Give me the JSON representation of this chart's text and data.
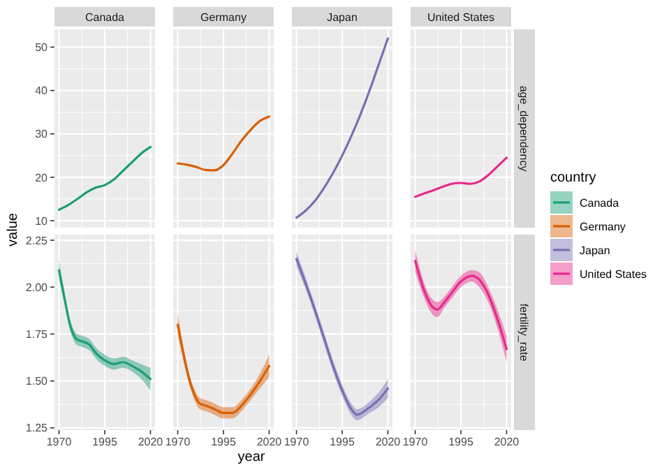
{
  "chart_data": [
    {
      "type": "line",
      "title": "Canada",
      "ylabel": "value",
      "xlim": [
        1967.5,
        2022.5
      ],
      "ylim": [
        8.4,
        54.1
      ],
      "xticks": [
        1970,
        1995,
        2020
      ],
      "yticks": [
        10,
        20,
        30,
        40,
        50
      ],
      "tick_labels": "y",
      "grid": true,
      "series": [
        {
          "name": "Canada",
          "color": "#1b9e77",
          "x": [
            1970,
            1975,
            1980,
            1985,
            1990,
            1995,
            2000,
            2005,
            2010,
            2015,
            2020
          ],
          "values": [
            12.5,
            13.6,
            15,
            16.5,
            17.6,
            18.2,
            19.5,
            21.5,
            23.5,
            25.5,
            27
          ]
        }
      ]
    },
    {
      "type": "line",
      "title": "Germany",
      "xlim": [
        1967.5,
        2022.5
      ],
      "ylim": [
        8.4,
        54.1
      ],
      "xticks": [
        1970,
        1995,
        2020
      ],
      "yticks": [
        10,
        20,
        30,
        40,
        50
      ],
      "tick_labels": false,
      "grid": true,
      "series": [
        {
          "name": "Germany",
          "color": "#d95f02",
          "x": [
            1970,
            1975,
            1980,
            1985,
            1990,
            1995,
            2000,
            2005,
            2010,
            2015,
            2020
          ],
          "values": [
            23.2,
            22.9,
            22.4,
            21.7,
            21.6,
            22.8,
            25.5,
            28.5,
            31,
            33,
            34
          ]
        }
      ]
    },
    {
      "type": "line",
      "title": "Japan",
      "xlim": [
        1967.5,
        2022.5
      ],
      "ylim": [
        8.4,
        54.1
      ],
      "xticks": [
        1970,
        1995,
        2020
      ],
      "yticks": [
        10,
        20,
        30,
        40,
        50
      ],
      "tick_labels": false,
      "grid": true,
      "series": [
        {
          "name": "Japan",
          "color": "#7570b3",
          "x": [
            1970,
            1975,
            1980,
            1985,
            1990,
            1995,
            2000,
            2005,
            2010,
            2015,
            2020
          ],
          "values": [
            10.7,
            12.3,
            14.5,
            17.5,
            21,
            25,
            29.5,
            34.5,
            40,
            46,
            52
          ]
        }
      ]
    },
    {
      "type": "line",
      "title": "United States",
      "y2label": "age_dependency",
      "legend_title": "country",
      "legend": "right",
      "xlim": [
        1967.5,
        2022.5
      ],
      "ylim": [
        8.4,
        54.1
      ],
      "xticks": [
        1970,
        1995,
        2020
      ],
      "yticks": [
        10,
        20,
        30,
        40,
        50
      ],
      "tick_labels": false,
      "grid": true,
      "series": [
        {
          "name": "United States",
          "color": "#e7298a",
          "x": [
            1970,
            1975,
            1980,
            1985,
            1990,
            1995,
            2000,
            2005,
            2010,
            2015,
            2020
          ],
          "values": [
            15.5,
            16.3,
            17,
            17.8,
            18.5,
            18.7,
            18.5,
            19,
            20.5,
            22.5,
            24.5
          ]
        }
      ]
    },
    {
      "type": "line",
      "xlim": [
        1967.5,
        2022.5
      ],
      "ylim": [
        1.238,
        2.28
      ],
      "xticks": [
        1970,
        1995,
        2020
      ],
      "yticks": [
        1.25,
        {
          "value": 1.5,
          "label": "1.50"
        },
        1.75,
        {
          "value": 2,
          "label": "2.00"
        },
        2.25
      ],
      "grid": true,
      "series": [
        {
          "name": "Canada",
          "color": "#1b9e77",
          "x": [
            1970,
            1973,
            1976,
            1980,
            1983,
            1987,
            1990,
            1995,
            2000,
            2005,
            2010,
            2015,
            2020
          ],
          "values": [
            2.09,
            1.94,
            1.8,
            1.72,
            1.71,
            1.69,
            1.65,
            1.61,
            1.59,
            1.6,
            1.58,
            1.55,
            1.51
          ],
          "lower": [
            2.04,
            1.91,
            1.77,
            1.69,
            1.68,
            1.66,
            1.62,
            1.58,
            1.56,
            1.57,
            1.55,
            1.51,
            1.45
          ],
          "upper": [
            2.14,
            1.97,
            1.83,
            1.75,
            1.74,
            1.72,
            1.68,
            1.64,
            1.62,
            1.63,
            1.61,
            1.59,
            1.57
          ]
        }
      ]
    },
    {
      "type": "line",
      "xlabel": "year",
      "xlim": [
        1967.5,
        2022.5
      ],
      "ylim": [
        1.238,
        2.28
      ],
      "xticks": [
        1970,
        1995,
        2020
      ],
      "yticks": [
        1.25,
        1.5,
        1.75,
        2.0,
        2.25
      ],
      "tick_labels": "x",
      "grid": true,
      "series": [
        {
          "name": "Germany",
          "color": "#d95f02",
          "x": [
            1970,
            1973,
            1976,
            1979,
            1982,
            1985,
            1990,
            1995,
            2000,
            2005,
            2010,
            2015,
            2020
          ],
          "values": [
            1.8,
            1.65,
            1.52,
            1.43,
            1.38,
            1.37,
            1.35,
            1.33,
            1.33,
            1.37,
            1.43,
            1.5,
            1.58
          ],
          "lower": [
            1.74,
            1.61,
            1.49,
            1.4,
            1.35,
            1.34,
            1.32,
            1.3,
            1.3,
            1.34,
            1.4,
            1.46,
            1.52
          ],
          "upper": [
            1.86,
            1.69,
            1.55,
            1.46,
            1.41,
            1.4,
            1.38,
            1.36,
            1.36,
            1.4,
            1.46,
            1.54,
            1.64
          ]
        }
      ]
    },
    {
      "type": "line",
      "xlim": [
        1967.5,
        2022.5
      ],
      "ylim": [
        1.238,
        2.28
      ],
      "xticks": [
        1970,
        1995,
        2020
      ],
      "yticks": [
        1.25,
        1.5,
        1.75,
        2.0,
        2.25
      ],
      "tick_labels": "x",
      "grid": true,
      "series": [
        {
          "name": "Japan",
          "color": "#7570b3",
          "x": [
            1970,
            1975,
            1980,
            1985,
            1990,
            1995,
            2000,
            2003,
            2010,
            2015,
            2020
          ],
          "values": [
            2.15,
            2.02,
            1.88,
            1.73,
            1.58,
            1.45,
            1.35,
            1.32,
            1.36,
            1.4,
            1.46
          ],
          "lower": [
            2.11,
            1.99,
            1.85,
            1.7,
            1.55,
            1.42,
            1.32,
            1.29,
            1.33,
            1.36,
            1.41
          ],
          "upper": [
            2.19,
            2.05,
            1.91,
            1.76,
            1.61,
            1.48,
            1.38,
            1.35,
            1.39,
            1.44,
            1.51
          ]
        }
      ]
    },
    {
      "type": "line",
      "y2label": "fertility_rate",
      "xlim": [
        1967.5,
        2022.5
      ],
      "ylim": [
        1.238,
        2.28
      ],
      "xticks": [
        1970,
        1995,
        2020
      ],
      "yticks": [
        1.25,
        1.5,
        1.75,
        2.0,
        2.25
      ],
      "tick_labels": "x",
      "grid": true,
      "series": [
        {
          "name": "United States",
          "color": "#e7298a",
          "x": [
            1970,
            1975,
            1979,
            1982,
            1986,
            1990,
            1995,
            2001,
            2005,
            2010,
            2015,
            2020
          ],
          "values": [
            2.14,
            1.98,
            1.9,
            1.88,
            1.92,
            1.97,
            2.03,
            2.06,
            2.04,
            1.96,
            1.83,
            1.67
          ],
          "lower": [
            2.08,
            1.94,
            1.86,
            1.84,
            1.89,
            1.94,
            2.0,
            2.03,
            2.0,
            1.92,
            1.78,
            1.6
          ],
          "upper": [
            2.2,
            2.02,
            1.94,
            1.92,
            1.95,
            2.0,
            2.06,
            2.09,
            2.08,
            2.0,
            1.88,
            1.74
          ]
        }
      ]
    }
  ]
}
